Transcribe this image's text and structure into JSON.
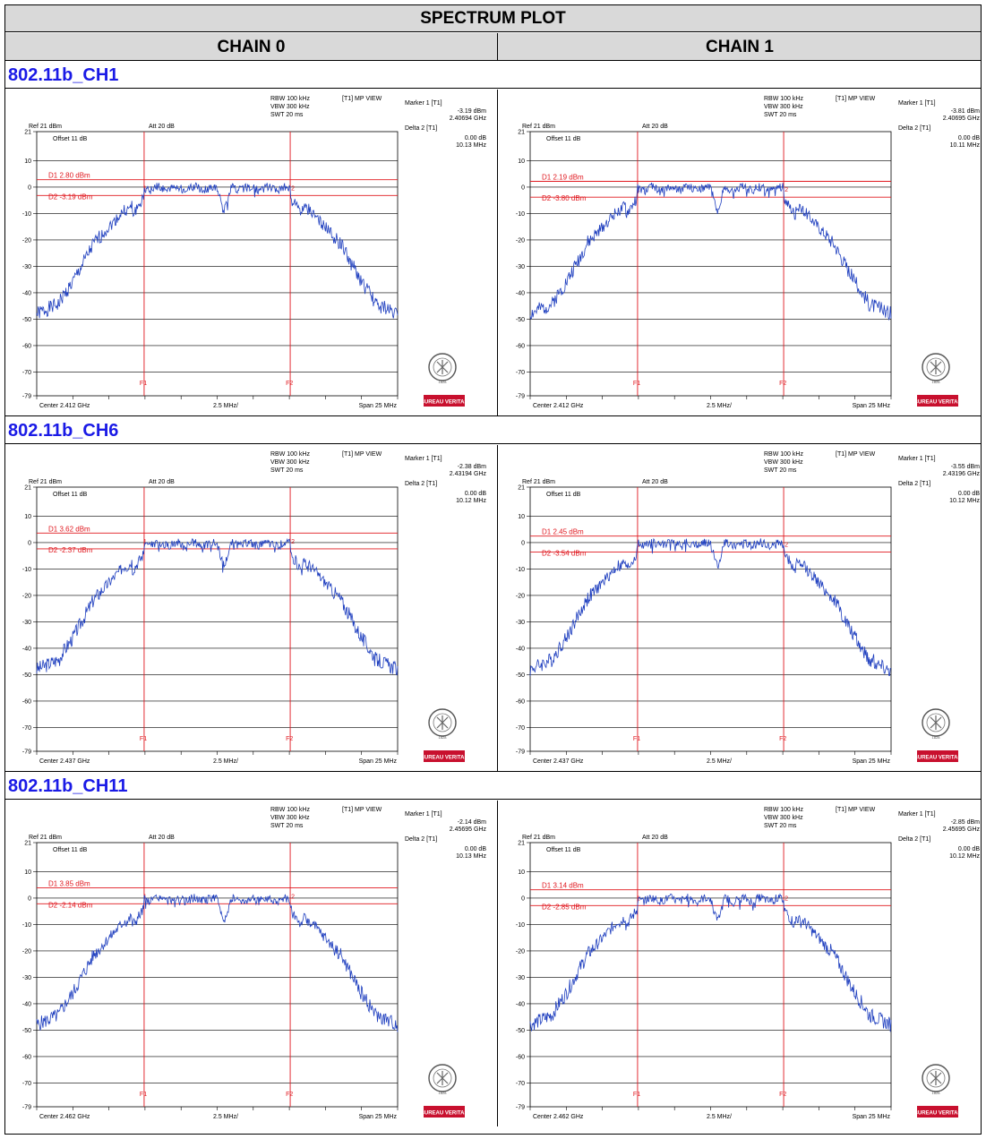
{
  "title": "SPECTRUM PLOT",
  "chains": [
    "CHAIN 0",
    "CHAIN 1"
  ],
  "sections": [
    {
      "label": "802.11b_CH1",
      "plots": [
        {
          "rbw": "RBW 100 kHz",
          "vbw": "VBW 300 kHz",
          "swt": "SWT 20 ms",
          "view": "[T1] MP VIEW",
          "marker1": "Marker 1 [T1]",
          "marker1_level": "-3.19 dBm",
          "marker1_freq": "2.40694 GHz",
          "delta2": "Delta 2 [T1]",
          "delta2_level": "0.00 dB",
          "delta2_freq": "10.13 MHz",
          "ref": "Ref 21 dBm",
          "att": "Att  20 dB",
          "offset": "Offset 11 dB",
          "d1": "D1 2.80 dBm",
          "d2": "D2 -3.19 dBm",
          "d1_dbm": 2.8,
          "d2_dbm": -3.19,
          "center": "Center 2.412 GHz",
          "div": "2.5 MHz/",
          "span": "Span 25 MHz",
          "seed": 1
        },
        {
          "rbw": "RBW 100 kHz",
          "vbw": "VBW 300 kHz",
          "swt": "SWT 20 ms",
          "view": "[T1] MP VIEW",
          "marker1": "Marker 1 [T1]",
          "marker1_level": "-3.81 dBm",
          "marker1_freq": "2.40695 GHz",
          "delta2": "Delta 2 [T1]",
          "delta2_level": "0.00 dB",
          "delta2_freq": "10.11 MHz",
          "ref": "Ref 21 dBm",
          "att": "Att  20 dB",
          "offset": "Offset 11 dB",
          "d1": "D1 2.19 dBm",
          "d2": "D2 -3.80 dBm",
          "d1_dbm": 2.19,
          "d2_dbm": -3.8,
          "center": "Center 2.412 GHz",
          "div": "2.5 MHz/",
          "span": "Span 25 MHz",
          "seed": 2
        }
      ]
    },
    {
      "label": "802.11b_CH6",
      "plots": [
        {
          "rbw": "RBW 100 kHz",
          "vbw": "VBW 300 kHz",
          "swt": "SWT 20 ms",
          "view": "[T1] MP VIEW",
          "marker1": "Marker 1 [T1]",
          "marker1_level": "-2.38 dBm",
          "marker1_freq": "2.43194 GHz",
          "delta2": "Delta 2 [T1]",
          "delta2_level": "0.00 dB",
          "delta2_freq": "10.12 MHz",
          "ref": "Ref 21 dBm",
          "att": "Att  20 dB",
          "offset": "Offset 11 dB",
          "d1": "D1 3.62 dBm",
          "d2": "D2 -2.37 dBm",
          "d1_dbm": 3.62,
          "d2_dbm": -2.37,
          "center": "Center 2.437 GHz",
          "div": "2.5 MHz/",
          "span": "Span 25 MHz",
          "seed": 3
        },
        {
          "rbw": "RBW 100 kHz",
          "vbw": "VBW 300 kHz",
          "swt": "SWT 20 ms",
          "view": "[T1] MP VIEW",
          "marker1": "Marker 1 [T1]",
          "marker1_level": "-3.55 dBm",
          "marker1_freq": "2.43196 GHz",
          "delta2": "Delta 2 [T1]",
          "delta2_level": "0.00 dB",
          "delta2_freq": "10.12 MHz",
          "ref": "Ref 21 dBm",
          "att": "Att  20 dB",
          "offset": "Offset 11 dB",
          "d1": "D1 2.45 dBm",
          "d2": "D2 -3.54 dBm",
          "d1_dbm": 2.45,
          "d2_dbm": -3.54,
          "center": "Center 2.437 GHz",
          "div": "2.5 MHz/",
          "span": "Span 25 MHz",
          "seed": 4
        }
      ]
    },
    {
      "label": "802.11b_CH11",
      "plots": [
        {
          "rbw": "RBW 100 kHz",
          "vbw": "VBW 300 kHz",
          "swt": "SWT 20 ms",
          "view": "[T1] MP VIEW",
          "marker1": "Marker 1 [T1]",
          "marker1_level": "-2.14 dBm",
          "marker1_freq": "2.45695 GHz",
          "delta2": "Delta 2 [T1]",
          "delta2_level": "0.00 dB",
          "delta2_freq": "10.13 MHz",
          "ref": "Ref 21 dBm",
          "att": "Att  20 dB",
          "offset": "Offset 11 dB",
          "d1": "D1 3.85 dBm",
          "d2": "D2 -2.14 dBm",
          "d1_dbm": 3.85,
          "d2_dbm": -2.14,
          "center": "Center 2.462 GHz",
          "div": "2.5 MHz/",
          "span": "Span 25 MHz",
          "seed": 5
        },
        {
          "rbw": "RBW 100 kHz",
          "vbw": "VBW 300 kHz",
          "swt": "SWT 20 ms",
          "view": "[T1] MP VIEW",
          "marker1": "Marker 1 [T1]",
          "marker1_level": "-2.85 dBm",
          "marker1_freq": "2.45695 GHz",
          "delta2": "Delta 2 [T1]",
          "delta2_level": "0.00 dB",
          "delta2_freq": "10.12 MHz",
          "ref": "Ref 21 dBm",
          "att": "Att  20 dB",
          "offset": "Offset 11 dB",
          "d1": "D1 3.14 dBm",
          "d2": "D2 -2.85 dBm",
          "d1_dbm": 3.14,
          "d2_dbm": -2.85,
          "center": "Center 2.462 GHz",
          "div": "2.5 MHz/",
          "span": "Span 25 MHz",
          "seed": 6
        }
      ]
    }
  ],
  "y_ticks": [
    "21",
    "10",
    "0",
    "-10",
    "-20",
    "-30",
    "-40",
    "-50",
    "-60",
    "-70",
    "-79"
  ],
  "f1_label": "F1",
  "f2_label": "F2",
  "marker_1_label": "1",
  "marker_2_label": "2",
  "logo_text": "BUREAU VERITAS",
  "logo_year": "1828",
  "colors": {
    "trace": "#1f3fbf",
    "limit": "#e0181f",
    "header_bg": "#d9d9d9",
    "section_text": "#1a1ae6",
    "logo_red": "#c8102e"
  }
}
